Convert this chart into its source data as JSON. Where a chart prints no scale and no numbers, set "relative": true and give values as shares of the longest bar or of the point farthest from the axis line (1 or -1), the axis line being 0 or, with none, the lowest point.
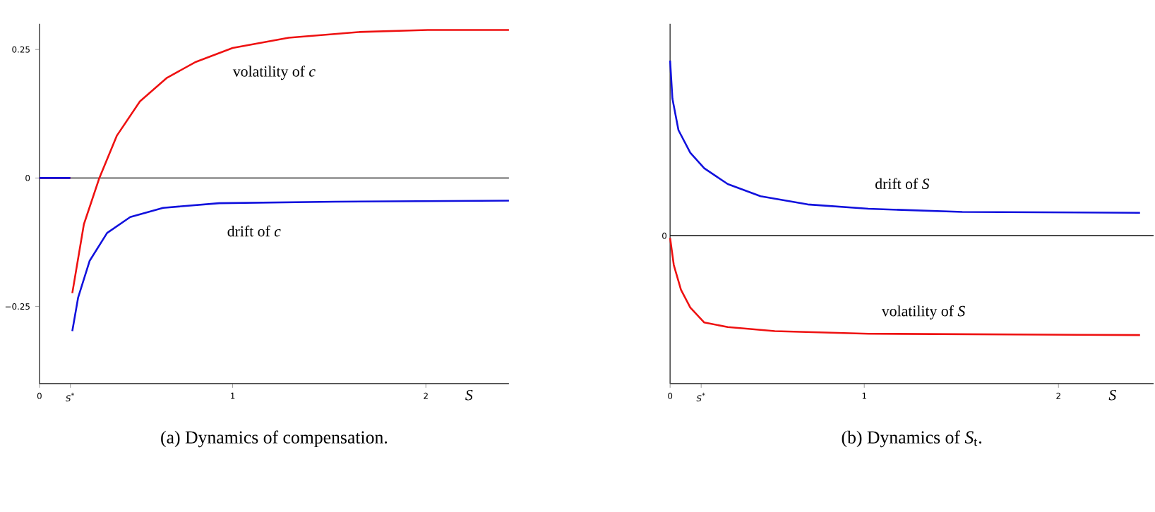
{
  "chart_data": [
    {
      "type": "line",
      "title": "(a) Dynamics of compensation.",
      "xlabel": "*S*",
      "xlim": [
        0,
        2.43
      ],
      "ylim": [
        -0.4,
        0.3
      ],
      "xticks": [
        0,
        {
          "value": 0.16,
          "label": "*S*$^{*}$"
        },
        1,
        2
      ],
      "yticks": [
        {
          "value": -0.25,
          "label": "−0.25"
        },
        0,
        0.25
      ],
      "series": [
        {
          "name": "volatility of *c*",
          "color": "#ee1111",
          "x": [
            0,
            0.16,
            0.165,
            0.17,
            0.23,
            0.31,
            0.4,
            0.52,
            0.66,
            0.81,
            1.0,
            1.29,
            1.65,
            2.01,
            2.43
          ],
          "values": [
            0,
            0,
            null,
            -0.224,
            -0.09,
            0,
            0.082,
            0.149,
            0.195,
            0.226,
            0.253,
            0.273,
            0.284,
            0.288,
            0.288
          ]
        },
        {
          "name": "drift of *c*",
          "color": "#1111dd",
          "x": [
            0,
            0.16,
            0.165,
            0.17,
            0.2,
            0.26,
            0.35,
            0.47,
            0.64,
            0.93,
            1.53,
            2.43
          ],
          "values": [
            0,
            0,
            null,
            -0.298,
            -0.233,
            -0.161,
            -0.107,
            -0.076,
            -0.058,
            -0.049,
            -0.046,
            -0.044
          ]
        }
      ],
      "ref_lines": [
        {
          "axis": "y",
          "value": 0,
          "color": "#000000"
        }
      ]
    },
    {
      "type": "line",
      "title": "(b) Dynamics of *S*$_{t}$.",
      "xlabel": "*S*",
      "relative": true,
      "xlim": [
        0,
        2.49
      ],
      "xticks": [
        0,
        {
          "value": 0.16,
          "label": "*S*$^{*}$"
        },
        1,
        2
      ],
      "series": [
        {
          "name": "drift of *S*",
          "color": "#1111dd",
          "x": [
            0,
            0.012,
            0.043,
            0.104,
            0.176,
            0.297,
            0.466,
            0.708,
            1.022,
            1.505,
            2.42
          ],
          "values": [
            1.0,
            0.782,
            0.603,
            0.474,
            0.385,
            0.295,
            0.226,
            0.179,
            0.154,
            0.136,
            0.131
          ]
        },
        {
          "name": "volatility of *S*",
          "color": "#ee1111",
          "x": [
            0,
            0.019,
            0.056,
            0.104,
            0.176,
            0.297,
            0.539,
            1.022,
            2.42
          ],
          "values": [
            -0.013,
            -0.167,
            -0.308,
            -0.41,
            -0.495,
            -0.521,
            -0.544,
            -0.559,
            -0.567
          ]
        }
      ],
      "ref_lines": [
        {
          "axis": "y",
          "value": 0,
          "label": "0",
          "color": "#000000"
        }
      ]
    }
  ]
}
